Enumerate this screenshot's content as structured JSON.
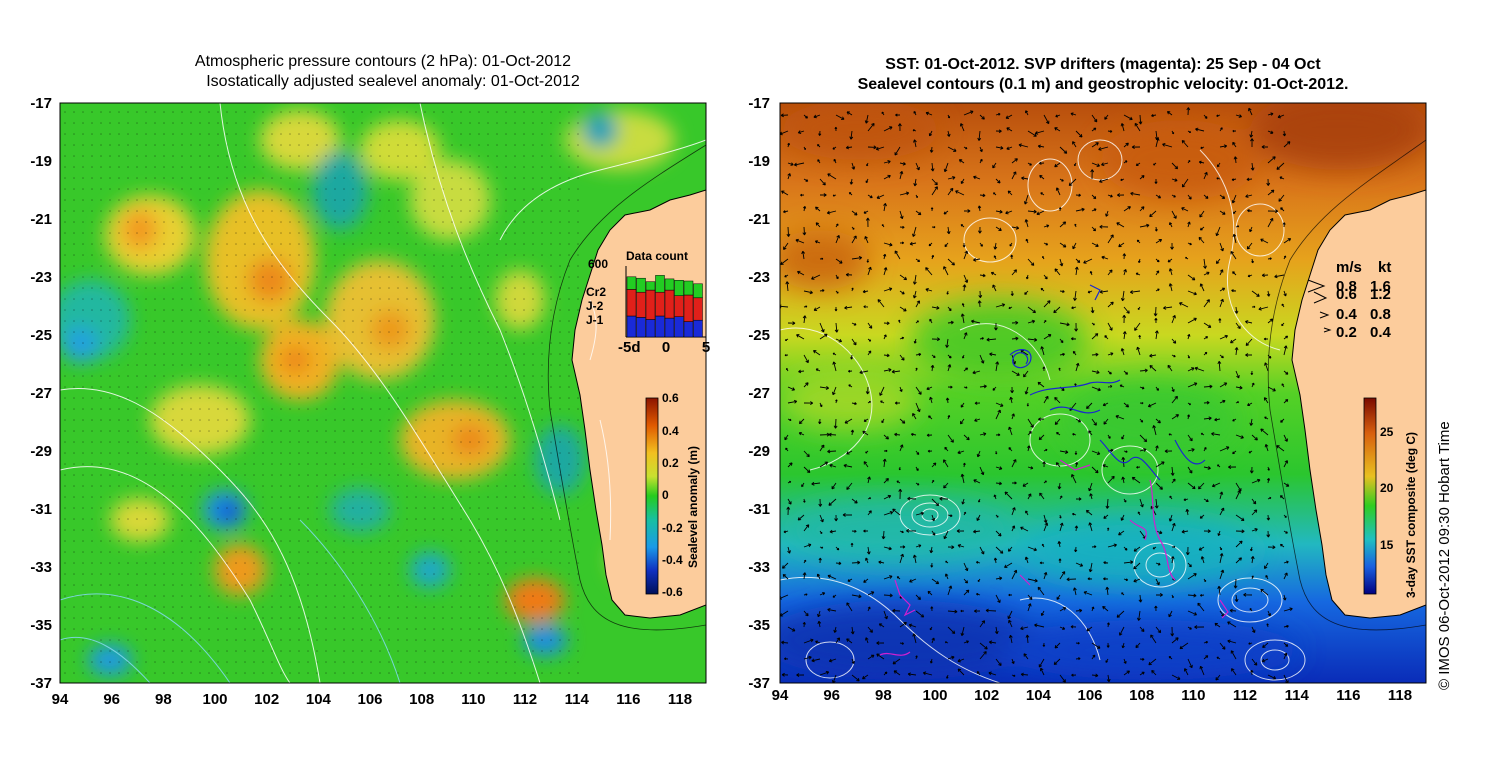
{
  "left_panel": {
    "title_line1": "Atmospheric pressure contours (2 hPa): 01-Oct-2012",
    "title_line2": "Isostatically adjusted sealevel anomaly: 01-Oct-2012",
    "lon_ticks": [
      "94",
      "96",
      "98",
      "100",
      "102",
      "104",
      "106",
      "108",
      "110",
      "112",
      "114",
      "116",
      "118"
    ],
    "lat_ticks": [
      "-17",
      "-19",
      "-21",
      "-23",
      "-25",
      "-27",
      "-29",
      "-31",
      "-33",
      "-35",
      "-37"
    ],
    "colorbar": {
      "label": "Sealevel anomaly (m)",
      "ticks": [
        "0.6",
        "0.4",
        "0.2",
        "0",
        "-0.2",
        "-0.4",
        "-0.6"
      ]
    },
    "inset": {
      "title": "Data count",
      "scale_label": "600",
      "series": [
        "Cr2",
        "J-2",
        "J-1"
      ],
      "series_colors": [
        "#22cc22",
        "#e0201a",
        "#1a2ad8"
      ],
      "x_ticks": [
        "-5d",
        "0",
        "5"
      ],
      "bars_blue": [
        0.3,
        0.28,
        0.25,
        0.3,
        0.27,
        0.29,
        0.22,
        0.24
      ],
      "bars_red": [
        0.38,
        0.36,
        0.42,
        0.34,
        0.4,
        0.3,
        0.38,
        0.32
      ],
      "bars_green": [
        0.18,
        0.2,
        0.12,
        0.24,
        0.16,
        0.22,
        0.2,
        0.2
      ]
    }
  },
  "right_panel": {
    "title_line1": "SST: 01-Oct-2012. SVP drifters (magenta): 25 Sep - 04 Oct",
    "title_line2": "Sealevel contours (0.1 m) and geostrophic velocity: 01-Oct-2012.",
    "lon_ticks": [
      "94",
      "96",
      "98",
      "100",
      "102",
      "104",
      "106",
      "108",
      "110",
      "112",
      "114",
      "116",
      "118"
    ],
    "lat_ticks": [
      "-17",
      "-19",
      "-21",
      "-23",
      "-25",
      "-27",
      "-29",
      "-31",
      "-33",
      "-35",
      "-37"
    ],
    "colorbar": {
      "label": "3-day SST composite (deg C)",
      "ticks": [
        "25",
        "20",
        "15"
      ]
    },
    "velocity_legend": {
      "header_ms": "m/s",
      "header_kt": "kt",
      "rows": [
        {
          "ms": "0.8",
          "kt": "1.6"
        },
        {
          "ms": "0.6",
          "kt": "1.2"
        },
        {
          "ms": "0.4",
          "kt": "0.8"
        },
        {
          "ms": "0.2",
          "kt": "0.4"
        }
      ]
    }
  },
  "copyright": "© IMOS 06-Oct-2012 09:30 Hobart Time",
  "colors": {
    "land": "#fccc9c",
    "sla_high": "#9a1a00",
    "sla_mid": "#2bd11e",
    "sla_low": "#02166e",
    "sst_warm": "#c85a10",
    "sst_mid": "#33cc22",
    "sst_cold": "#0033cc"
  }
}
